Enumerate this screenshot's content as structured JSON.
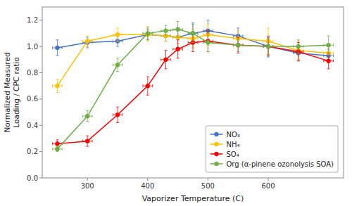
{
  "chart_data": {
    "type": "line",
    "title": "",
    "x_label": "Vaporizer Temperature (C)",
    "y_label": "Normalized Measured\nLoading / CPC ratio",
    "x": [
      250,
      300,
      350,
      400,
      430,
      450,
      475,
      500,
      550,
      600,
      650,
      700
    ],
    "xlim": [
      225,
      725
    ],
    "ylim": [
      0.0,
      1.3
    ],
    "xticks": [
      300,
      400,
      500,
      600
    ],
    "yticks": [
      {
        "value": 0.0,
        "label": "0.0"
      },
      0.2,
      0.4,
      0.6,
      0.8,
      {
        "value": 1.0,
        "label": "1.0"
      },
      1.2
    ],
    "grid": false,
    "legend": "lower right",
    "marker": "circle",
    "line_style": "solid",
    "series": [
      {
        "name": "NO₃",
        "color": "#4472C4",
        "values": [
          0.99,
          1.03,
          1.04,
          1.09,
          1.08,
          1.07,
          1.1,
          1.12,
          1.08,
          1.0,
          0.95,
          0.93
        ],
        "errors": [
          0.06,
          0.04,
          0.04,
          0.04,
          0.04,
          0.05,
          0.08,
          0.08,
          0.06,
          0.08,
          0.06,
          0.05
        ],
        "x_errors": [
          8,
          8,
          8,
          8,
          8,
          8,
          8,
          8,
          8,
          8,
          8,
          8
        ]
      },
      {
        "name": "NH₄",
        "color": "#FFC000",
        "values": [
          0.7,
          1.04,
          1.09,
          1.09,
          1.08,
          1.07,
          1.06,
          1.09,
          1.06,
          1.04,
          0.97,
          0.95
        ],
        "errors": [
          0.05,
          0.04,
          0.05,
          0.05,
          0.04,
          0.05,
          0.07,
          0.08,
          0.06,
          0.1,
          0.07,
          0.05
        ],
        "x_errors": [
          8,
          8,
          8,
          8,
          8,
          8,
          8,
          8,
          8,
          8,
          8,
          8
        ]
      },
      {
        "name": "SO₄",
        "color": "#FF0000",
        "values": [
          0.26,
          0.28,
          0.48,
          0.7,
          0.9,
          0.98,
          1.03,
          1.04,
          1.01,
          1.0,
          0.96,
          0.89
        ],
        "errors": [
          0.03,
          0.04,
          0.06,
          0.07,
          0.07,
          0.07,
          0.07,
          0.08,
          0.06,
          0.07,
          0.07,
          0.06
        ],
        "x_errors": [
          8,
          8,
          8,
          8,
          8,
          8,
          8,
          8,
          8,
          8,
          8,
          8
        ]
      },
      {
        "name": "Org (α-pinene ozonolysis SOA)",
        "color": "#70AD47",
        "values": [
          0.22,
          0.47,
          0.86,
          1.1,
          1.12,
          1.13,
          1.1,
          1.03,
          1.01,
          1.0,
          1.0,
          1.01
        ],
        "errors": [
          0.02,
          0.04,
          0.05,
          0.05,
          0.04,
          0.06,
          0.07,
          0.07,
          0.05,
          0.06,
          0.05,
          0.07
        ],
        "x_errors": [
          8,
          8,
          8,
          8,
          8,
          8,
          8,
          8,
          8,
          8,
          8,
          8
        ]
      }
    ]
  }
}
